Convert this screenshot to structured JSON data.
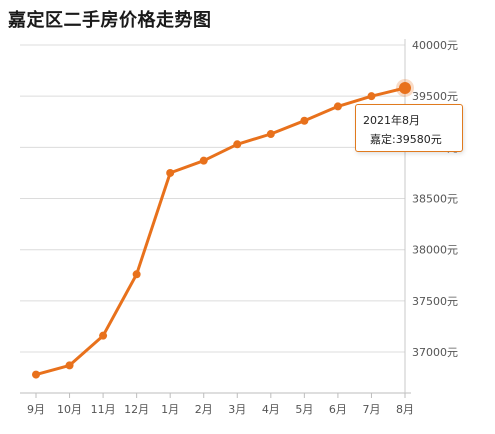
{
  "chart_data": {
    "type": "line",
    "title": "嘉定区二手房价格走势图",
    "categories": [
      "9月",
      "10月",
      "11月",
      "12月",
      "1月",
      "2月",
      "3月",
      "4月",
      "5月",
      "6月",
      "7月",
      "8月"
    ],
    "series": [
      {
        "values": [
          36780,
          36870,
          37160,
          37760,
          38750,
          38870,
          39030,
          39130,
          39260,
          39400,
          39500,
          39580
        ]
      }
    ],
    "ylim": [
      36600,
      40000
    ],
    "yticks": [
      {
        "value": 37000,
        "label": "37000元"
      },
      {
        "value": 37500,
        "label": "37500元"
      },
      {
        "value": 38000,
        "label": "38000元"
      },
      {
        "value": 38500,
        "label": "38500元"
      },
      {
        "value": 39000,
        "label": "39000元"
      },
      {
        "value": 39500,
        "label": "39500元"
      },
      {
        "value": 40000,
        "label": "40000元"
      }
    ],
    "grid": true,
    "line_color": "#e8711c",
    "highlight_index": 11
  },
  "tooltip": {
    "date": "2021年8月",
    "value": "嘉定:39580元",
    "border_color": "#e07a1e"
  }
}
